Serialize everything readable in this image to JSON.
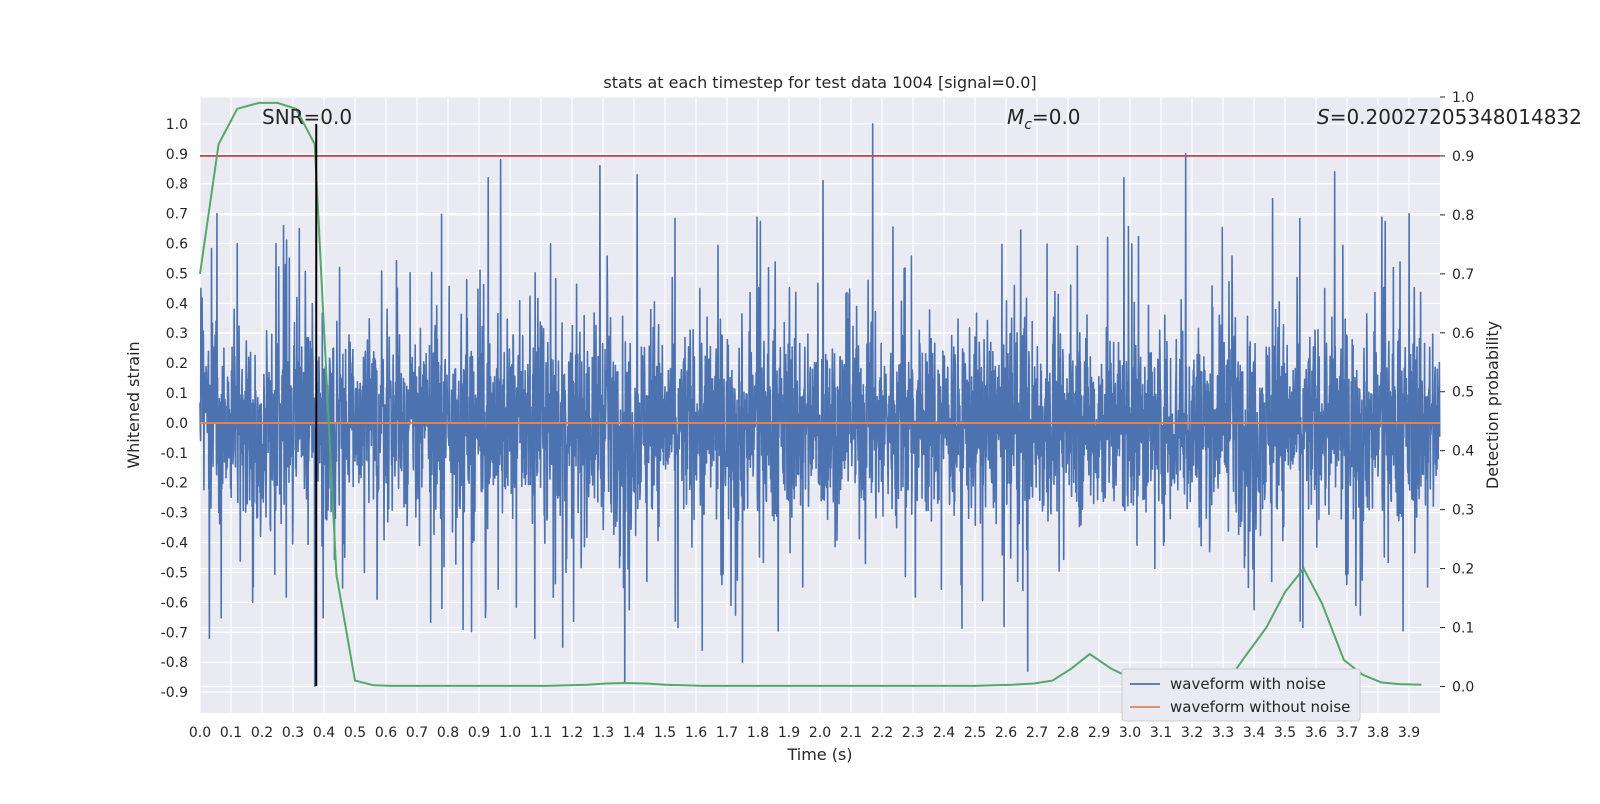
{
  "chart_data": {
    "type": "line",
    "title": "stats at each timestep for test data 1004 [signal=0.0]",
    "xlabel": "Time (s)",
    "ylabel": "Whitened strain",
    "ylabel_right": "Detection probability",
    "xlim": [
      0.0,
      4.0
    ],
    "ylim": [
      -0.97,
      1.09
    ],
    "ylim_right": [
      -0.045,
      1.0
    ],
    "x_ticks": [
      "0.0",
      "0.1",
      "0.2",
      "0.3",
      "0.4",
      "0.5",
      "0.6",
      "0.7",
      "0.8",
      "0.9",
      "1.0",
      "1.1",
      "1.2",
      "1.3",
      "1.4",
      "1.5",
      "1.6",
      "1.7",
      "1.8",
      "1.9",
      "2.0",
      "2.1",
      "2.2",
      "2.3",
      "2.4",
      "2.5",
      "2.6",
      "2.7",
      "2.8",
      "2.9",
      "3.0",
      "3.1",
      "3.2",
      "3.3",
      "3.4",
      "3.5",
      "3.6",
      "3.7",
      "3.8",
      "3.9"
    ],
    "y_ticks": [
      "1.0",
      "0.9",
      "0.8",
      "0.7",
      "0.6",
      "0.5",
      "0.4",
      "0.3",
      "0.2",
      "0.1",
      "0.0",
      "-0.1",
      "-0.2",
      "-0.3",
      "-0.4",
      "-0.5",
      "-0.6",
      "-0.7",
      "-0.8",
      "-0.9"
    ],
    "y_ticks_right": [
      "1.0",
      "0.9",
      "0.8",
      "0.7",
      "0.6",
      "0.5",
      "0.4",
      "0.3",
      "0.2",
      "0.1",
      "0.0"
    ],
    "annotations": {
      "snr": "SNR=0.0",
      "mc_symbol": "M",
      "mc_sub": "c",
      "mc_value": "=0.0",
      "s_symbol": "S",
      "s_value": "=0.20027205348014832"
    },
    "noise_spikes": [
      {
        "x": 0.003,
        "y": 0.45
      },
      {
        "x": 0.03,
        "y": -0.72
      },
      {
        "x": 0.055,
        "y": 0.7
      },
      {
        "x": 0.12,
        "y": 0.6
      },
      {
        "x": 0.17,
        "y": -0.6
      },
      {
        "x": 0.245,
        "y": 0.6
      },
      {
        "x": 0.27,
        "y": 0.66
      },
      {
        "x": 0.32,
        "y": 0.65
      },
      {
        "x": 0.37,
        "y": -0.88
      },
      {
        "x": 0.45,
        "y": 0.52
      },
      {
        "x": 0.53,
        "y": -0.5
      },
      {
        "x": 0.78,
        "y": -0.62
      },
      {
        "x": 0.93,
        "y": 0.82
      },
      {
        "x": 0.97,
        "y": 0.88
      },
      {
        "x": 1.08,
        "y": -0.72
      },
      {
        "x": 1.17,
        "y": -0.75
      },
      {
        "x": 1.29,
        "y": 0.86
      },
      {
        "x": 1.37,
        "y": -0.87
      },
      {
        "x": 1.41,
        "y": 0.83
      },
      {
        "x": 1.62,
        "y": -0.76
      },
      {
        "x": 1.75,
        "y": -0.8
      },
      {
        "x": 2.01,
        "y": 0.81
      },
      {
        "x": 2.17,
        "y": 1.0
      },
      {
        "x": 2.67,
        "y": -0.83
      },
      {
        "x": 2.98,
        "y": 0.82
      },
      {
        "x": 3.18,
        "y": 0.9
      },
      {
        "x": 3.46,
        "y": 0.75
      },
      {
        "x": 3.66,
        "y": 0.84
      },
      {
        "x": 3.9,
        "y": 0.7
      }
    ],
    "series": [
      {
        "name": "waveform with noise",
        "color": "#4c72b0",
        "kind": "noise",
        "amplitude_typical": 0.38,
        "amplitude_max": 1.0
      },
      {
        "name": "waveform without noise",
        "color": "#dd8452",
        "x": [
          0.0,
          4.0
        ],
        "y": [
          0.0,
          0.0
        ]
      },
      {
        "name": "Detection probability",
        "color": "#55a868",
        "axis": "right",
        "x": [
          0.0,
          0.06,
          0.12,
          0.19,
          0.25,
          0.31,
          0.37,
          0.44,
          0.5,
          0.56,
          0.62,
          0.69,
          0.75,
          0.81,
          0.87,
          0.94,
          1.0,
          1.06,
          1.12,
          1.19,
          1.25,
          1.31,
          1.37,
          1.44,
          1.5,
          1.56,
          1.62,
          1.69,
          1.75,
          1.81,
          1.87,
          1.94,
          2.0,
          2.06,
          2.12,
          2.19,
          2.25,
          2.31,
          2.37,
          2.44,
          2.5,
          2.56,
          2.62,
          2.69,
          2.75,
          2.81,
          2.87,
          2.94,
          3.0,
          3.06,
          3.12,
          3.19,
          3.25,
          3.31,
          3.37,
          3.44,
          3.5,
          3.56,
          3.62,
          3.69,
          3.75,
          3.81,
          3.87,
          3.94
        ],
        "y": [
          0.7,
          0.92,
          0.98,
          0.99,
          0.99,
          0.98,
          0.92,
          0.19,
          0.01,
          0.002,
          0.001,
          0.001,
          0.001,
          0.001,
          0.001,
          0.001,
          0.001,
          0.001,
          0.001,
          0.002,
          0.003,
          0.005,
          0.006,
          0.005,
          0.003,
          0.002,
          0.001,
          0.001,
          0.001,
          0.001,
          0.001,
          0.001,
          0.001,
          0.001,
          0.001,
          0.001,
          0.001,
          0.001,
          0.001,
          0.001,
          0.001,
          0.002,
          0.003,
          0.005,
          0.01,
          0.03,
          0.055,
          0.03,
          0.015,
          0.005,
          0.002,
          0.001,
          0.001,
          0.005,
          0.05,
          0.1,
          0.16,
          0.2,
          0.14,
          0.045,
          0.02,
          0.007,
          0.004,
          0.003
        ]
      }
    ],
    "hlines": [
      {
        "name": "threshold",
        "axis": "right",
        "y": 0.9,
        "color": "#c44e52"
      }
    ],
    "vlines": [
      {
        "name": "marker",
        "x": 0.375,
        "ymin": -0.88,
        "ymax": 1.0,
        "color": "#000000"
      }
    ],
    "legend": {
      "placement": "bottom-right",
      "items": [
        "waveform with noise",
        "waveform without noise"
      ]
    }
  }
}
